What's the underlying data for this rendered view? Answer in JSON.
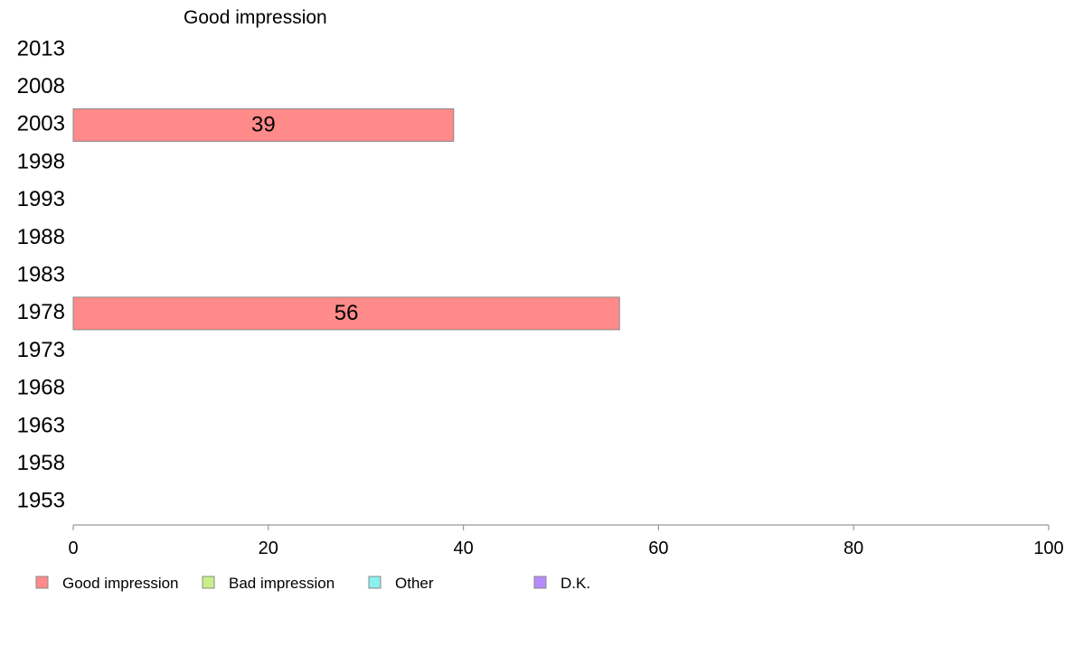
{
  "chart_data": {
    "type": "bar",
    "orientation": "horizontal",
    "title": "Good impression",
    "categories": [
      "2013",
      "2008",
      "2003",
      "1998",
      "1993",
      "1988",
      "1983",
      "1978",
      "1973",
      "1968",
      "1963",
      "1958",
      "1953"
    ],
    "series": [
      {
        "name": "Good impression",
        "color": "#ff8a8a",
        "values": [
          null,
          null,
          39,
          null,
          null,
          null,
          null,
          56,
          null,
          null,
          null,
          null,
          null
        ]
      }
    ],
    "xlim": [
      0,
      100
    ],
    "xticks": [
      0,
      20,
      40,
      60,
      80,
      100
    ],
    "grid": false,
    "legend": {
      "position": "bottom",
      "items": [
        {
          "label": "Good impression",
          "color": "#ff8a8a"
        },
        {
          "label": "Bad impression",
          "color": "#c8f08a"
        },
        {
          "label": "Other",
          "color": "#8af0f0"
        },
        {
          "label": "D.K.",
          "color": "#b68aff"
        }
      ]
    }
  }
}
